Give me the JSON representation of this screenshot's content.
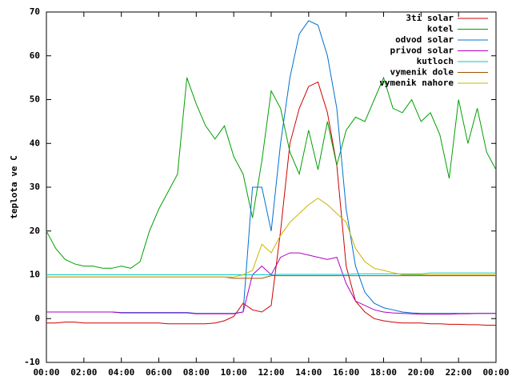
{
  "chart_data": {
    "type": "line",
    "ylabel": "teplota ve C",
    "x": [
      0,
      0.5,
      1,
      1.5,
      2,
      2.5,
      3,
      3.5,
      4,
      4.5,
      5,
      5.5,
      6,
      6.5,
      7,
      7.5,
      8,
      8.5,
      9,
      9.5,
      10,
      10.5,
      11,
      11.5,
      12,
      12.5,
      13,
      13.5,
      14,
      14.5,
      15,
      15.5,
      16,
      16.5,
      17,
      17.5,
      18,
      18.5,
      19,
      19.5,
      20,
      20.5,
      21,
      21.5,
      22,
      22.5,
      23,
      23.5,
      24
    ],
    "xlim": [
      0,
      24
    ],
    "xticks": [
      {
        "value": 0,
        "label": "00:00"
      },
      {
        "value": 2,
        "label": "02:00"
      },
      {
        "value": 4,
        "label": "04:00"
      },
      {
        "value": 6,
        "label": "06:00"
      },
      {
        "value": 8,
        "label": "08:00"
      },
      {
        "value": 10,
        "label": "10:00"
      },
      {
        "value": 12,
        "label": "12:00"
      },
      {
        "value": 14,
        "label": "14:00"
      },
      {
        "value": 16,
        "label": "16:00"
      },
      {
        "value": 18,
        "label": "18:00"
      },
      {
        "value": 20,
        "label": "20:00"
      },
      {
        "value": 22,
        "label": "22:00"
      },
      {
        "value": 24,
        "label": "00:00"
      }
    ],
    "ylim": [
      -10,
      70
    ],
    "yticks": [
      -10,
      0,
      10,
      20,
      30,
      40,
      50,
      60,
      70
    ],
    "grid": false,
    "legend": "upper right",
    "series": [
      {
        "name": "3ti solar",
        "color": "#d00000",
        "values": [
          -1,
          -1,
          -0.8,
          -0.8,
          -1,
          -1,
          -1,
          -1,
          -1,
          -1,
          -1,
          -1,
          -1,
          -1.2,
          -1.2,
          -1.2,
          -1.2,
          -1.2,
          -1,
          -0.5,
          0.5,
          3.5,
          2,
          1.5,
          3,
          20,
          40,
          48,
          53,
          54,
          47,
          35,
          12,
          4,
          1.5,
          0,
          -0.5,
          -0.8,
          -1,
          -1,
          -1,
          -1.2,
          -1.2,
          -1.3,
          -1.3,
          -1.4,
          -1.4,
          -1.5,
          -1.5
        ]
      },
      {
        "name": "kotel",
        "color": "#00a000",
        "values": [
          20,
          16,
          13.5,
          12.5,
          12,
          12,
          11.5,
          11.5,
          12,
          11.5,
          13,
          20,
          25,
          29,
          33,
          55,
          49,
          44,
          41,
          44,
          37,
          33,
          23,
          36,
          52,
          48,
          38,
          33,
          43,
          34,
          45,
          35,
          43,
          46,
          45,
          50,
          55,
          48,
          47,
          50,
          45,
          47,
          42,
          32,
          50,
          40,
          48,
          38,
          34
        ]
      },
      {
        "name": "odvod solar",
        "color": "#0070d0",
        "values": [
          1.5,
          1.5,
          1.5,
          1.5,
          1.5,
          1.5,
          1.5,
          1.5,
          1.4,
          1.4,
          1.4,
          1.4,
          1.4,
          1.4,
          1.4,
          1.4,
          1.2,
          1.2,
          1.2,
          1.2,
          1.2,
          1.5,
          30,
          30,
          20,
          40,
          55,
          65,
          68,
          67,
          60,
          48,
          25,
          12,
          6,
          3.5,
          2.5,
          2,
          1.5,
          1.3,
          1.2,
          1.2,
          1.2,
          1.2,
          1.2,
          1.2,
          1.2,
          1.2,
          1.2
        ]
      },
      {
        "name": "privod solar",
        "color": "#b000c0",
        "values": [
          1.5,
          1.5,
          1.5,
          1.5,
          1.5,
          1.5,
          1.5,
          1.5,
          1.3,
          1.3,
          1.3,
          1.3,
          1.3,
          1.3,
          1.3,
          1.3,
          1.1,
          1.1,
          1.1,
          1.1,
          1.1,
          1.5,
          10,
          12,
          10,
          14,
          15,
          15,
          14.5,
          14,
          13.5,
          14,
          8,
          4,
          3,
          2,
          1.5,
          1.3,
          1.2,
          1.1,
          1,
          1,
          1,
          1,
          1.1,
          1.1,
          1.2,
          1.2,
          1.2
        ]
      },
      {
        "name": "kutloch",
        "color": "#00c8c8",
        "values": [
          10,
          10,
          10,
          10,
          10,
          10,
          10,
          10,
          10,
          10,
          10,
          10,
          10,
          10,
          10,
          10,
          10,
          10,
          10,
          10,
          10,
          10,
          10,
          10,
          10,
          10.1,
          10.1,
          10.1,
          10.1,
          10.1,
          10.1,
          10.1,
          10.1,
          10.2,
          10.2,
          10.2,
          10.2,
          10.2,
          10.2,
          10.2,
          10.2,
          10.4,
          10.4,
          10.4,
          10.4,
          10.4,
          10.4,
          10.4,
          10.4
        ]
      },
      {
        "name": "vymenik dole",
        "color": "#a05000",
        "values": [
          9.5,
          9.5,
          9.5,
          9.5,
          9.5,
          9.5,
          9.5,
          9.5,
          9.5,
          9.5,
          9.5,
          9.5,
          9.5,
          9.5,
          9.5,
          9.5,
          9.5,
          9.5,
          9.5,
          9.5,
          9.2,
          9.2,
          9.2,
          9.2,
          9.8,
          9.8,
          9.8,
          9.8,
          9.8,
          9.8,
          9.8,
          9.8,
          9.8,
          9.8,
          9.8,
          9.8,
          9.8,
          9.8,
          9.8,
          9.8,
          9.8,
          9.8,
          9.8,
          9.8,
          9.8,
          9.8,
          9.8,
          9.8,
          9.8
        ]
      },
      {
        "name": "vymenik nahore",
        "color": "#c8b400",
        "values": [
          9.5,
          9.5,
          9.5,
          9.5,
          9.5,
          9.5,
          9.5,
          9.5,
          9.5,
          9.5,
          9.5,
          9.5,
          9.5,
          9.5,
          9.5,
          9.5,
          9.5,
          9.5,
          9.5,
          9.5,
          9.5,
          10,
          11,
          17,
          15,
          19,
          22,
          24,
          26,
          27.5,
          26,
          24,
          22,
          16,
          13,
          11.5,
          11,
          10.5,
          10,
          10,
          10,
          10,
          10,
          10,
          10,
          10,
          10,
          10,
          10
        ]
      }
    ]
  }
}
